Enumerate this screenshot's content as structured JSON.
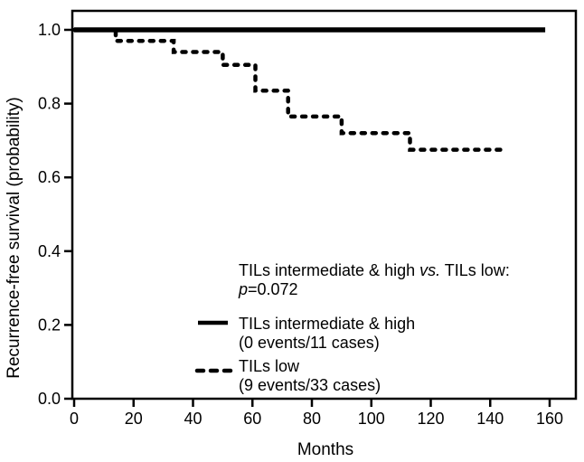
{
  "figure": {
    "x_axis": {
      "label": "Months"
    },
    "y_axis": {
      "label": "Recurrence-free survival (probability)"
    },
    "annotation": {
      "l1a": "TILs intermediate & high ",
      "l1b": "vs.",
      "l1c": " TILs low:",
      "l2a": "p",
      "l2b": "=0.072"
    },
    "legend": [
      {
        "label": "TILs intermediate & high",
        "sub": "(0 events/11 cases)",
        "style": "solid"
      },
      {
        "label": "TILs low",
        "sub": "(9 events/33 cases)",
        "style": "dashed"
      }
    ]
  },
  "chart_data": {
    "type": "line",
    "subtype": "kaplan-meier-step",
    "title": "",
    "xlabel": "Months",
    "ylabel": "Recurrence-free survival (probability)",
    "xlim": [
      0,
      169
    ],
    "ylim": [
      0,
      1.05
    ],
    "grid": false,
    "legend_position": "inside-lower-right",
    "x_ticks": [
      0,
      20,
      40,
      60,
      80,
      100,
      120,
      140,
      160
    ],
    "x_tick_labels": [
      "0",
      "20",
      "40",
      "60",
      "80",
      "100",
      "120",
      "140",
      "160"
    ],
    "y_ticks": [
      0.0,
      0.2,
      0.4,
      0.6,
      0.8,
      1.0
    ],
    "y_tick_labels": [
      "0.0",
      "0.2",
      "0.4",
      "0.6",
      "0.8",
      "1.0"
    ],
    "annotation": "TILs intermediate & high vs. TILs low: p=0.072",
    "series": [
      {
        "name": "TILs intermediate & high",
        "events": "0 events/11 cases",
        "line": "solid",
        "points": [
          [
            0,
            1.0
          ],
          [
            158.5,
            1.0
          ]
        ]
      },
      {
        "name": "TILs low",
        "events": "9 events/33 cases",
        "line": "dashed",
        "points": [
          [
            0,
            1.0
          ],
          [
            14,
            1.0
          ],
          [
            14,
            0.97
          ],
          [
            33.5,
            0.97
          ],
          [
            33.5,
            0.94
          ],
          [
            50,
            0.94
          ],
          [
            50,
            0.905
          ],
          [
            61,
            0.905
          ],
          [
            61,
            0.835
          ],
          [
            72,
            0.835
          ],
          [
            72,
            0.765
          ],
          [
            90,
            0.765
          ],
          [
            90,
            0.72
          ],
          [
            113,
            0.72
          ],
          [
            113,
            0.675
          ],
          [
            145,
            0.675
          ]
        ]
      }
    ]
  }
}
